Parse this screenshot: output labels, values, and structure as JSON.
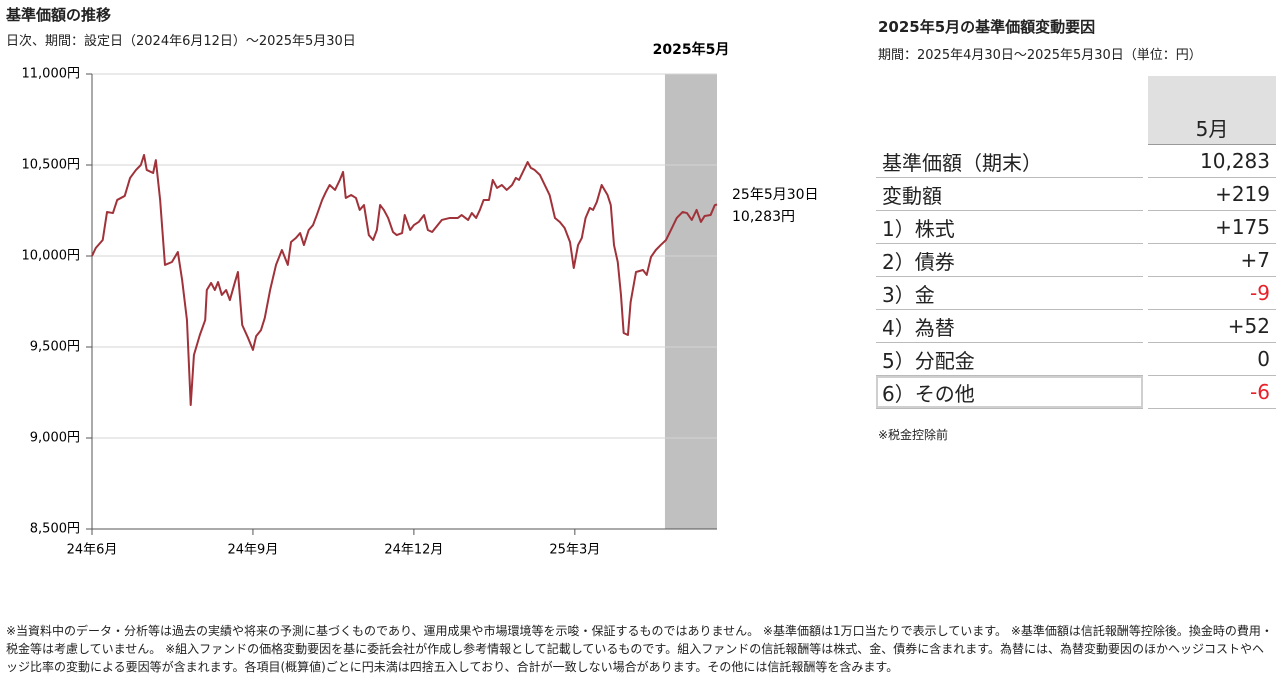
{
  "chart_data": {
    "type": "line",
    "title": "基準価額の推移",
    "subtitle": "日次、期間：設定日（2024年6月12日）～2025年5月30日",
    "x": [
      0,
      0.07,
      0.2,
      0.28,
      0.39,
      0.47,
      0.54,
      0.61,
      0.71,
      0.82,
      0.91,
      0.97,
      1.02,
      1.14,
      1.19,
      1.27,
      1.36,
      1.49,
      1.6,
      1.68,
      1.77,
      1.84,
      1.9,
      2.01,
      2.11,
      2.14,
      2.22,
      2.29,
      2.35,
      2.42,
      2.5,
      2.57,
      2.66,
      2.72,
      2.8,
      2.91,
      3.0,
      3.06,
      3.15,
      3.22,
      3.32,
      3.43,
      3.54,
      3.65,
      3.71,
      3.8,
      3.88,
      3.95,
      4.04,
      4.12,
      4.19,
      4.29,
      4.36,
      4.43,
      4.53,
      4.62,
      4.68,
      4.73,
      4.83,
      4.92,
      4.99,
      5.07,
      5.16,
      5.24,
      5.31,
      5.37,
      5.44,
      5.52,
      5.61,
      5.68,
      5.78,
      5.83,
      5.93,
      6.0,
      6.09,
      6.19,
      6.26,
      6.34,
      6.43,
      6.52,
      6.67,
      6.82,
      6.89,
      7.01,
      7.08,
      7.16,
      7.23,
      7.3,
      7.4,
      7.47,
      7.55,
      7.64,
      7.73,
      7.83,
      7.9,
      7.96,
      8.05,
      8.12,
      8.18,
      8.25,
      8.35,
      8.44,
      8.53,
      8.63,
      8.72,
      8.81,
      8.91,
      8.98,
      9.06,
      9.13,
      9.2,
      9.28,
      9.34,
      9.41,
      9.5,
      9.61,
      9.67,
      9.73,
      9.8,
      9.86,
      9.91,
      9.99,
      10.04,
      10.14,
      10.27,
      10.34,
      10.42,
      10.51,
      10.6,
      10.7,
      10.81,
      10.9,
      11.01,
      11.09,
      11.18,
      11.27,
      11.35,
      11.42,
      11.53,
      11.61,
      11.65
    ],
    "series": [
      {
        "color": "#a0323a",
        "values": [
          10000,
          10044,
          10088,
          10242,
          10236,
          10308,
          10319,
          10330,
          10429,
          10473,
          10500,
          10555,
          10473,
          10456,
          10527,
          10308,
          9951,
          9967,
          10022,
          9868,
          9648,
          9181,
          9456,
          9566,
          9648,
          9813,
          9852,
          9813,
          9857,
          9786,
          9813,
          9758,
          9852,
          9912,
          9621,
          9549,
          9484,
          9560,
          9593,
          9659,
          9813,
          9951,
          10033,
          9951,
          10077,
          10099,
          10126,
          10060,
          10143,
          10170,
          10225,
          10308,
          10352,
          10390,
          10363,
          10418,
          10462,
          10319,
          10335,
          10319,
          10253,
          10280,
          10115,
          10088,
          10143,
          10280,
          10253,
          10209,
          10132,
          10115,
          10126,
          10225,
          10143,
          10170,
          10187,
          10225,
          10143,
          10132,
          10165,
          10198,
          10209,
          10209,
          10225,
          10198,
          10236,
          10209,
          10253,
          10308,
          10308,
          10418,
          10374,
          10390,
          10363,
          10390,
          10429,
          10418,
          10473,
          10516,
          10484,
          10473,
          10445,
          10390,
          10335,
          10209,
          10187,
          10154,
          10077,
          9934,
          10060,
          10099,
          10209,
          10264,
          10253,
          10297,
          10390,
          10335,
          10280,
          10060,
          9967,
          9786,
          9577,
          9566,
          9747,
          9912,
          9923,
          9896,
          9995,
          10033,
          10060,
          10088,
          10154,
          10209,
          10242,
          10236,
          10198,
          10253,
          10187,
          10220,
          10225,
          10280,
          10283
        ]
      }
    ],
    "xlim": [
      0,
      11.65
    ],
    "xticks": [
      {
        "value": 0,
        "label": "24年6月"
      },
      {
        "value": 3,
        "label": "24年9月"
      },
      {
        "value": 6,
        "label": "24年12月"
      },
      {
        "value": 9,
        "label": "25年3月"
      }
    ],
    "ylim": [
      8500,
      11000
    ],
    "yticks": [
      {
        "value": 8500,
        "label": "8,500円"
      },
      {
        "value": 9000,
        "label": "9,000円"
      },
      {
        "value": 9500,
        "label": "9,500円"
      },
      {
        "value": 10000,
        "label": "10,000円"
      },
      {
        "value": 10500,
        "label": "10,500円"
      },
      {
        "value": 11000,
        "label": "11,000円"
      }
    ],
    "grid": true,
    "highlight": {
      "label": "2025年5月",
      "range": [
        10.68,
        11.65
      ],
      "color": "#c0c0c0"
    },
    "annotation": [
      "25年5月30日",
      "10,283円"
    ]
  },
  "table": {
    "title": "2025年5月の基準価額変動要因",
    "subtitle": "期間：2025年4月30日～2025年5月30日（単位：円）",
    "header": "5月",
    "rows": [
      {
        "label": "基準価額（期末）",
        "value": "10,283",
        "color": "#222"
      },
      {
        "label": "変動額",
        "value": "+219",
        "color": "#222"
      },
      {
        "label": "1）株式",
        "value": "+175",
        "color": "#222"
      },
      {
        "label": "2）債券",
        "value": "+7",
        "color": "#222"
      },
      {
        "label": "3）金",
        "value": "-9",
        "color": "#e8202a"
      },
      {
        "label": "4）為替",
        "value": "+52",
        "color": "#222"
      },
      {
        "label": "5）分配金",
        "value": "0",
        "color": "#222"
      },
      {
        "label": "6）その他",
        "value": "-6",
        "color": "#e8202a"
      }
    ],
    "note": "※税金控除前"
  },
  "footer": "※当資料中のデータ・分析等は過去の実績や将来の予測に基づくものであり、運用成果や市場環境等を示唆・保証するものではありません。 ※基準価額は1万口当たりで表示しています。 ※基準価額は信託報酬等控除後。換金時の費用・税金等は考慮していません。 ※組入ファンドの価格変動要因を基に委託会社が作成し参考情報として記載しているものです。組入ファンドの信託報酬等は株式、金、債券に含まれます。為替には、為替変動要因のほかヘッジコストやヘッジ比率の変動による要因等が含まれます。各項目(概算値)ごとに円未満は四捨五入しており、合計が一致しない場合があります。その他には信託報酬等を含みます。"
}
